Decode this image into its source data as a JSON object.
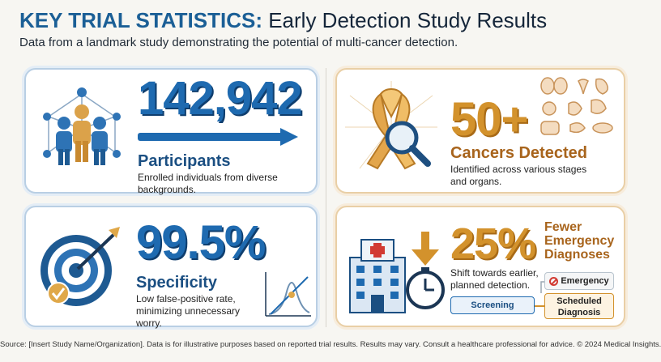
{
  "header": {
    "title_bold": "KEY TRIAL STATISTICS:",
    "title_rest": " Early Detection Study Results",
    "subtitle": "Data from a landmark study demonstrating the potential of multi-cancer detection."
  },
  "stats": [
    {
      "value": "142,942",
      "label": "Participants",
      "description": "Enrolled individuals from diverse backgrounds."
    },
    {
      "value": "50+",
      "label": "Cancers Detected",
      "description": "Identified across various stages and organs."
    },
    {
      "value": "99.5%",
      "label": "Specificity",
      "description": "Low false-positive rate, minimizing unnecessary worry."
    },
    {
      "value": "25%",
      "label": "Fewer Emergency Diagnoses",
      "label_lines": [
        "Fewer",
        "Emergency",
        "Diagnoses"
      ],
      "description": "Shift towards earlier, planned detection."
    }
  ],
  "flow": {
    "emergency": "Emergency",
    "screening": "Screening",
    "scheduled_line1": "Scheduled",
    "scheduled_line2": "Diagnosis"
  },
  "footer": "Source: [Insert Study Name/Organization]. Data is for illustrative purposes based on reported trial results. Results may vary. Consult a healthcare professional for advice. © 2024 Medical Insights.",
  "colors": {
    "blue": "#1e6ab0",
    "orange": "#d3922c",
    "background": "#f7f6f2"
  },
  "icons": [
    "people-network-icon",
    "arrow-icon",
    "awareness-ribbon-magnifier-icon",
    "organs-icon",
    "target-arrow-icon",
    "curve-chart-icon",
    "hospital-icon",
    "stopwatch-icon",
    "prohibited-icon"
  ]
}
